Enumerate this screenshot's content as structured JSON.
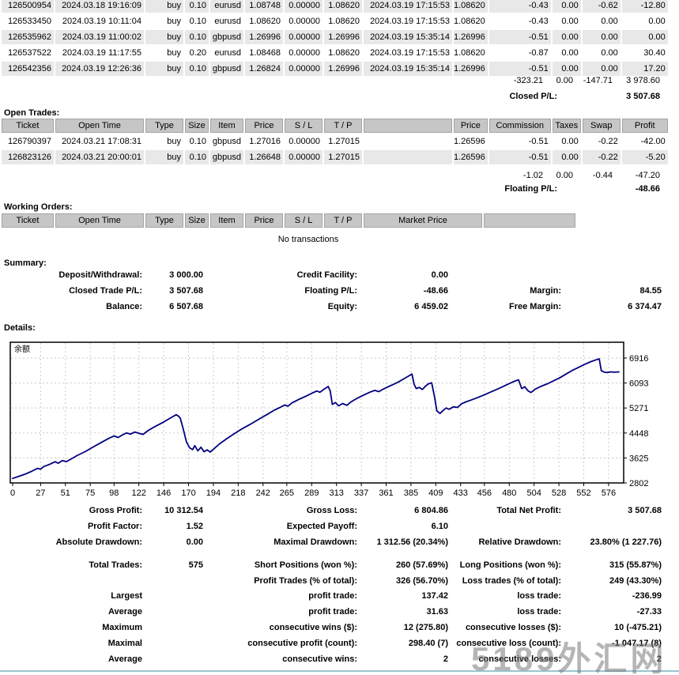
{
  "closed_trades": {
    "rows": [
      [
        "126500954",
        "2024.03.18 19:16:09",
        "buy",
        "0.10",
        "eurusd",
        "1.08748",
        "0.00000",
        "1.08620",
        "2024.03.19 17:15:53",
        "1.08620",
        "-0.43",
        "0.00",
        "-0.62",
        "-12.80"
      ],
      [
        "126533450",
        "2024.03.19 10:11:04",
        "buy",
        "0.10",
        "eurusd",
        "1.08620",
        "0.00000",
        "1.08620",
        "2024.03.19 17:15:53",
        "1.08620",
        "-0.43",
        "0.00",
        "0.00",
        "0.00"
      ],
      [
        "126535962",
        "2024.03.19 11:00:02",
        "buy",
        "0.10",
        "gbpusd",
        "1.26996",
        "0.00000",
        "1.26996",
        "2024.03.19 15:35:14",
        "1.26996",
        "-0.51",
        "0.00",
        "0.00",
        "0.00"
      ],
      [
        "126537522",
        "2024.03.19 11:17:55",
        "buy",
        "0.20",
        "eurusd",
        "1.08468",
        "0.00000",
        "1.08620",
        "2024.03.19 17:15:53",
        "1.08620",
        "-0.87",
        "0.00",
        "0.00",
        "30.40"
      ],
      [
        "126542356",
        "2024.03.19 12:26:36",
        "buy",
        "0.10",
        "gbpusd",
        "1.26824",
        "0.00000",
        "1.26996",
        "2024.03.19 15:35:14",
        "1.26996",
        "-0.51",
        "0.00",
        "0.00",
        "17.20"
      ]
    ],
    "row_stripes": [
      true,
      false,
      true,
      false,
      true
    ],
    "totals": [
      "-323.21",
      "0.00",
      "-147.71",
      "3 978.60"
    ],
    "closed_pl_label": "Closed P/L:",
    "closed_pl_value": "3 507.68"
  },
  "open_trades": {
    "section_label": "Open Trades:",
    "headers": [
      "Ticket",
      "Open Time",
      "Type",
      "Size",
      "Item",
      "Price",
      "S / L",
      "T / P",
      "",
      "Price",
      "Commission",
      "Taxes",
      "Swap",
      "Profit"
    ],
    "rows": [
      [
        "126790397",
        "2024.03.21 17:08:31",
        "buy",
        "0.10",
        "gbpusd",
        "1.27016",
        "0.00000",
        "1.27015",
        "",
        "1.26596",
        "-0.51",
        "0.00",
        "-0.22",
        "-42.00"
      ],
      [
        "126823126",
        "2024.03.21 20:00:01",
        "buy",
        "0.10",
        "gbpusd",
        "1.26648",
        "0.00000",
        "1.27015",
        "",
        "1.26596",
        "-0.51",
        "0.00",
        "-0.22",
        "-5.20"
      ]
    ],
    "row_stripes": [
      false,
      true
    ],
    "totals": [
      "-1.02",
      "0.00",
      "-0.44",
      "-47.20"
    ],
    "floating_pl_label": "Floating P/L:",
    "floating_pl_value": "-48.66"
  },
  "working_orders": {
    "section_label": "Working Orders:",
    "headers": [
      "Ticket",
      "Open Time",
      "Type",
      "Size",
      "Item",
      "Price",
      "S / L",
      "T / P",
      "Market Price",
      ""
    ],
    "header_spans": [
      1,
      1,
      1,
      1,
      1,
      1,
      1,
      1,
      2,
      2
    ],
    "empty_text": "No transactions"
  },
  "summary": {
    "section_label": "Summary:",
    "rows": [
      [
        [
          "Deposit/Withdrawal:",
          "3 000.00"
        ],
        [
          "Credit Facility:",
          "0.00"
        ],
        [
          "",
          ""
        ]
      ],
      [
        [
          "Closed Trade P/L:",
          "3 507.68"
        ],
        [
          "Floating P/L:",
          "-48.66"
        ],
        [
          "Margin:",
          "84.55"
        ]
      ],
      [
        [
          "Balance:",
          "6 507.68"
        ],
        [
          "Equity:",
          "6 459.02"
        ],
        [
          "Free Margin:",
          "6 374.47"
        ]
      ]
    ]
  },
  "details": {
    "section_label": "Details:",
    "rows": [
      [
        [
          "Gross Profit:",
          "10 312.54"
        ],
        [
          "Gross Loss:",
          "6 804.86"
        ],
        [
          "Total Net Profit:",
          "3 507.68"
        ]
      ],
      [
        [
          "Profit Factor:",
          "1.52"
        ],
        [
          "Expected Payoff:",
          "6.10"
        ],
        [
          "",
          ""
        ]
      ],
      [
        [
          "Absolute Drawdown:",
          "0.00"
        ],
        [
          "Maximal Drawdown:",
          "1 312.56 (20.34%)"
        ],
        [
          "Relative Drawdown:",
          "23.80% (1 227.76)"
        ]
      ],
      [
        [
          "Total Trades:",
          "575"
        ],
        [
          "Short Positions (won %):",
          "260 (57.69%)"
        ],
        [
          "Long Positions (won %):",
          "315 (55.87%)"
        ]
      ],
      [
        [
          "",
          ""
        ],
        [
          "Profit Trades (% of total):",
          "326 (56.70%)"
        ],
        [
          "Loss trades (% of total):",
          "249 (43.30%)"
        ]
      ],
      [
        [
          "Largest",
          ""
        ],
        [
          "profit trade:",
          "137.42"
        ],
        [
          "loss trade:",
          "-236.99"
        ]
      ],
      [
        [
          "Average",
          ""
        ],
        [
          "profit trade:",
          "31.63"
        ],
        [
          "loss trade:",
          "-27.33"
        ]
      ],
      [
        [
          "Maximum",
          ""
        ],
        [
          "consecutive wins ($):",
          "12 (275.80)"
        ],
        [
          "consecutive losses ($):",
          "10 (-475.21)"
        ]
      ],
      [
        [
          "Maximal",
          ""
        ],
        [
          "consecutive profit (count):",
          "298.40 (7)"
        ],
        [
          "consecutive loss (count):",
          "-1 047.17 (8)"
        ]
      ],
      [
        [
          "Average",
          ""
        ],
        [
          "consecutive wins:",
          "2"
        ],
        [
          "consecutive losses:",
          "2"
        ]
      ]
    ]
  },
  "watermark": "5189外汇网",
  "chart_data": {
    "type": "line",
    "title": "",
    "xlabel": "",
    "ylabel": "",
    "legend": "余额",
    "grid": true,
    "x_ticks": [
      0,
      27,
      51,
      75,
      98,
      122,
      146,
      170,
      194,
      218,
      242,
      265,
      289,
      313,
      337,
      361,
      385,
      409,
      433,
      456,
      480,
      504,
      528,
      552,
      576
    ],
    "y_ticks": [
      2802,
      3625,
      4448,
      5271,
      6093,
      6916
    ],
    "xlim": [
      -2.3,
      590.6
    ],
    "ylim": [
      2802,
      7437
    ],
    "line_color": "#000080",
    "grid_color": "#c9c9c9",
    "series": [
      {
        "name": "余额",
        "points": [
          [
            0,
            2950
          ],
          [
            6,
            3020
          ],
          [
            12,
            3090
          ],
          [
            18,
            3180
          ],
          [
            24,
            3280
          ],
          [
            27,
            3255
          ],
          [
            30,
            3340
          ],
          [
            36,
            3420
          ],
          [
            41,
            3500
          ],
          [
            44,
            3450
          ],
          [
            48,
            3540
          ],
          [
            52,
            3505
          ],
          [
            56,
            3580
          ],
          [
            62,
            3700
          ],
          [
            70,
            3830
          ],
          [
            78,
            3990
          ],
          [
            86,
            4140
          ],
          [
            93,
            4270
          ],
          [
            98,
            4350
          ],
          [
            102,
            4300
          ],
          [
            106,
            4380
          ],
          [
            110,
            4450
          ],
          [
            114,
            4410
          ],
          [
            118,
            4480
          ],
          [
            122,
            4440
          ],
          [
            126,
            4400
          ],
          [
            131,
            4530
          ],
          [
            136,
            4630
          ],
          [
            141,
            4720
          ],
          [
            146,
            4810
          ],
          [
            151,
            4910
          ],
          [
            155,
            4990
          ],
          [
            158,
            5050
          ],
          [
            160,
            5010
          ],
          [
            162,
            4940
          ],
          [
            165,
            4560
          ],
          [
            168,
            4150
          ],
          [
            171,
            3960
          ],
          [
            174,
            3900
          ],
          [
            176,
            4030
          ],
          [
            179,
            3860
          ],
          [
            182,
            3980
          ],
          [
            185,
            3830
          ],
          [
            188,
            3890
          ],
          [
            191,
            3820
          ],
          [
            195,
            3940
          ],
          [
            200,
            4090
          ],
          [
            207,
            4260
          ],
          [
            214,
            4420
          ],
          [
            222,
            4590
          ],
          [
            230,
            4740
          ],
          [
            238,
            4900
          ],
          [
            246,
            5060
          ],
          [
            253,
            5200
          ],
          [
            259,
            5300
          ],
          [
            263,
            5370
          ],
          [
            266,
            5330
          ],
          [
            270,
            5440
          ],
          [
            277,
            5560
          ],
          [
            284,
            5670
          ],
          [
            290,
            5770
          ],
          [
            294,
            5830
          ],
          [
            297,
            5790
          ],
          [
            301,
            5890
          ],
          [
            305,
            5980
          ],
          [
            307,
            5830
          ],
          [
            309,
            5390
          ],
          [
            312,
            5450
          ],
          [
            315,
            5340
          ],
          [
            319,
            5420
          ],
          [
            323,
            5360
          ],
          [
            327,
            5470
          ],
          [
            333,
            5590
          ],
          [
            339,
            5690
          ],
          [
            345,
            5790
          ],
          [
            350,
            5850
          ],
          [
            354,
            5810
          ],
          [
            358,
            5890
          ],
          [
            363,
            5970
          ],
          [
            368,
            6050
          ],
          [
            373,
            6130
          ],
          [
            378,
            6230
          ],
          [
            383,
            6330
          ],
          [
            386,
            6390
          ],
          [
            388,
            6060
          ],
          [
            390,
            5910
          ],
          [
            393,
            5950
          ],
          [
            396,
            5880
          ],
          [
            399,
            5990
          ],
          [
            402,
            6070
          ],
          [
            405,
            6100
          ],
          [
            408,
            5600
          ],
          [
            410,
            5180
          ],
          [
            413,
            5090
          ],
          [
            416,
            5190
          ],
          [
            419,
            5270
          ],
          [
            422,
            5230
          ],
          [
            426,
            5310
          ],
          [
            430,
            5290
          ],
          [
            434,
            5410
          ],
          [
            438,
            5470
          ],
          [
            443,
            5530
          ],
          [
            449,
            5610
          ],
          [
            455,
            5690
          ],
          [
            461,
            5780
          ],
          [
            467,
            5870
          ],
          [
            473,
            5960
          ],
          [
            479,
            6060
          ],
          [
            485,
            6150
          ],
          [
            489,
            6200
          ],
          [
            492,
            5910
          ],
          [
            495,
            5970
          ],
          [
            498,
            5840
          ],
          [
            501,
            5780
          ],
          [
            505,
            5890
          ],
          [
            511,
            5990
          ],
          [
            517,
            6070
          ],
          [
            523,
            6170
          ],
          [
            529,
            6270
          ],
          [
            535,
            6390
          ],
          [
            541,
            6510
          ],
          [
            547,
            6610
          ],
          [
            553,
            6710
          ],
          [
            559,
            6800
          ],
          [
            564,
            6860
          ],
          [
            567,
            6890
          ],
          [
            569,
            6500
          ],
          [
            572,
            6450
          ],
          [
            575,
            6440
          ],
          [
            578,
            6460
          ],
          [
            582,
            6450
          ],
          [
            586,
            6460
          ]
        ]
      }
    ]
  }
}
